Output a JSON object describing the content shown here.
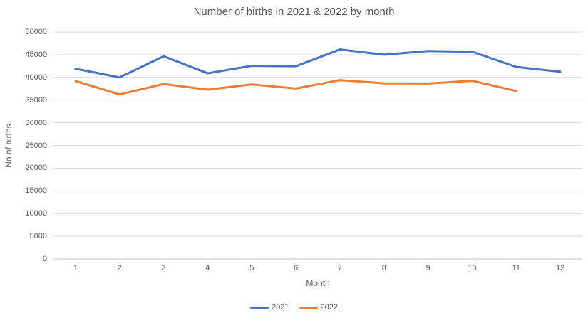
{
  "chart_data": {
    "type": "line",
    "title": "Number of births in 2021 & 2022 by month",
    "xlabel": "Month",
    "ylabel": "No of births",
    "categories": [
      "1",
      "2",
      "3",
      "4",
      "5",
      "6",
      "7",
      "8",
      "9",
      "10",
      "11",
      "12"
    ],
    "series": [
      {
        "name": "2021",
        "color": "#4472C4",
        "values": [
          41900,
          40000,
          44650,
          40900,
          42550,
          42450,
          46150,
          45000,
          45800,
          45650,
          42300,
          41250
        ]
      },
      {
        "name": "2022",
        "color": "#ED7D31",
        "values": [
          39200,
          36250,
          38550,
          37300,
          38450,
          37550,
          39400,
          38700,
          38650,
          39250,
          37000,
          null
        ]
      }
    ],
    "ylim": [
      0,
      50000
    ],
    "yticks": [
      0,
      5000,
      10000,
      15000,
      20000,
      25000,
      30000,
      35000,
      40000,
      45000,
      50000
    ],
    "grid": true,
    "legend_position": "bottom"
  },
  "style": {
    "background": "#FFFFFF",
    "text_color": "#595959",
    "grid_color": "#D9D9D9",
    "axis_line_color": "#BFBFBF"
  }
}
